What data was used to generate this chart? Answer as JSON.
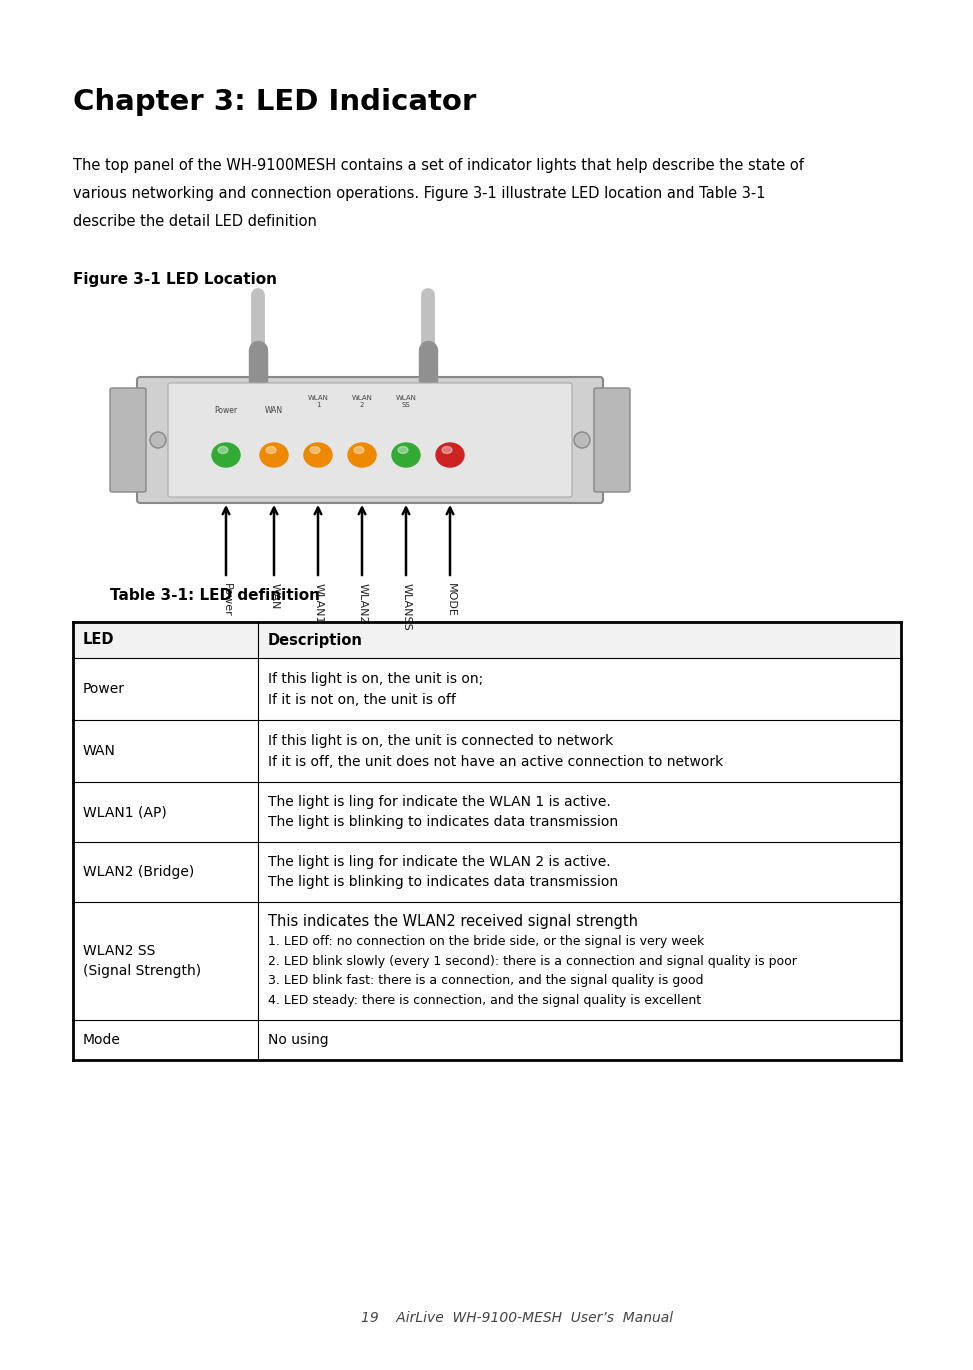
{
  "title": "Chapter 3: LED Indicator",
  "body_lines": [
    "The top panel of the WH-9100MESH contains a set of indicator lights that help describe the state of",
    "various networking and connection operations. Figure 3-1 illustrate LED location and Table 3-1",
    "describe the detail LED definition"
  ],
  "figure_label": "Figure 3-1 LED Location",
  "table_title": "Table 3-1: LED definition",
  "table_col1_header": "LED",
  "table_col2_header": "Description",
  "table_rows": [
    {
      "led": "Power",
      "desc": [
        "If this light is on, the unit is on;",
        "If it is not on, the unit is off"
      ]
    },
    {
      "led": "WAN",
      "desc": [
        "If this light is on, the unit is connected to network",
        "If it is off, the unit does not have an active connection to network"
      ]
    },
    {
      "led": "WLAN1 (AP)",
      "desc": [
        "The light is ling for indicate the WLAN 1 is active.",
        "The light is blinking to indicates data transmission"
      ]
    },
    {
      "led": "WLAN2 (Bridge)",
      "desc": [
        "The light is ling for indicate the WLAN 2 is active.",
        "The light is blinking to indicates data transmission"
      ]
    },
    {
      "led": "WLAN2 SS\n(Signal Strength)",
      "desc": [
        "This indicates the WLAN2 received signal strength",
        "1. LED off: no connection on the bride side, or the signal is very week",
        "2. LED blink slowly (every 1 second): there is a connection and signal quality is poor",
        "3. LED blink fast: there is a connection, and the signal quality is good",
        "4. LED steady: there is connection, and the signal quality is excellent"
      ]
    },
    {
      "led": "Mode",
      "desc": [
        "No using"
      ]
    }
  ],
  "footer_text": "19    AirLive  WH-9100-MESH  User’s  Manual",
  "bg_color": "#ffffff",
  "text_color": "#000000",
  "led_colors": [
    "#33aa33",
    "#ee8800",
    "#ee8800",
    "#ee8800",
    "#33aa33",
    "#cc2222"
  ],
  "led_labels": [
    "Power",
    "WAN",
    "WLAN\n1",
    "WLAN\n2",
    "WLAN\nSS",
    ""
  ],
  "arrow_labels": [
    "Power",
    "WAN",
    "WLAN1",
    "WLAN2",
    "WLANSS",
    "MODE"
  ]
}
